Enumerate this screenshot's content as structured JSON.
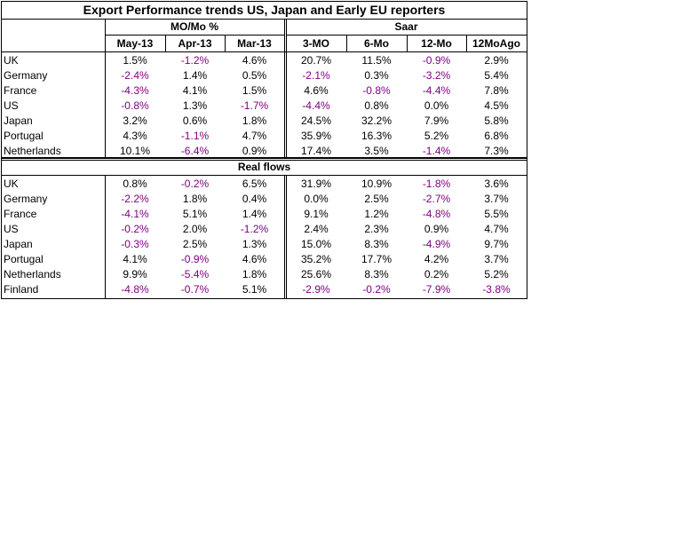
{
  "title": "Export Performance trends US, Japan and Early EU reporters",
  "groups": [
    "MO/Mo %",
    "Saar"
  ],
  "columns": [
    "May-13",
    "Apr-13",
    "Mar-13",
    "3-MO",
    "6-Mo",
    "12-Mo",
    "12MoAgo"
  ],
  "table": {
    "rows": [
      [
        "UK",
        "1.5%",
        "-1.2%",
        "4.6%",
        "20.7%",
        "11.5%",
        "-0.9%",
        "2.9%"
      ],
      [
        "Germany",
        "-2.4%",
        "1.4%",
        "0.5%",
        "-2.1%",
        "0.3%",
        "-3.2%",
        "5.4%"
      ],
      [
        "France",
        "-4.3%",
        "4.1%",
        "1.5%",
        "4.6%",
        "-0.8%",
        "-4.4%",
        "7.8%"
      ],
      [
        "US",
        "-0.8%",
        "1.3%",
        "-1.7%",
        "-4.4%",
        "0.8%",
        "0.0%",
        "4.5%"
      ],
      [
        "Japan",
        "3.2%",
        "0.6%",
        "1.8%",
        "24.5%",
        "32.2%",
        "7.9%",
        "5.8%"
      ],
      [
        "Portugal",
        "4.3%",
        "-1.1%",
        "4.7%",
        "35.9%",
        "16.3%",
        "5.2%",
        "6.8%"
      ],
      [
        "Netherlands",
        "10.1%",
        "-6.4%",
        "0.9%",
        "17.4%",
        "3.5%",
        "-1.4%",
        "7.3%"
      ]
    ]
  },
  "real_flows": {
    "title": "Real flows",
    "rows": [
      [
        "UK",
        "0.8%",
        "-0.2%",
        "6.5%",
        "31.9%",
        "10.9%",
        "-1.8%",
        "3.6%"
      ],
      [
        "Germany",
        "-2.2%",
        "1.8%",
        "0.4%",
        "0.0%",
        "2.5%",
        "-2.7%",
        "3.7%"
      ],
      [
        "France",
        "-4.1%",
        "5.1%",
        "1.4%",
        "9.1%",
        "1.2%",
        "-4.8%",
        "5.5%"
      ],
      [
        "US",
        "-0.2%",
        "2.0%",
        "-1.2%",
        "2.4%",
        "2.3%",
        "0.9%",
        "4.7%"
      ],
      [
        "Japan",
        "-0.3%",
        "2.5%",
        "1.3%",
        "15.0%",
        "8.3%",
        "-4.9%",
        "9.7%"
      ],
      [
        "Portugal",
        "4.1%",
        "-0.9%",
        "4.6%",
        "35.2%",
        "17.7%",
        "4.2%",
        "3.7%"
      ],
      [
        "Netherlands",
        "9.9%",
        "-5.4%",
        "1.8%",
        "25.6%",
        "8.3%",
        "0.2%",
        "5.2%"
      ],
      [
        "Finland",
        "-4.8%",
        "-0.7%",
        "5.1%",
        "-2.9%",
        "-0.2%",
        "-7.9%",
        "-3.8%"
      ]
    ]
  }
}
